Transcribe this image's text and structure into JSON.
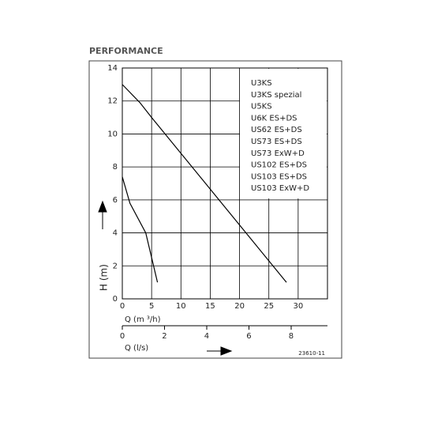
{
  "chart_data": {
    "type": "line",
    "title": "PERFORMANCE",
    "ylabel": "H (m)",
    "xlabel": "Q (m ³/h)",
    "x2label": "Q (l/s)",
    "xlim": [
      0,
      35
    ],
    "xticks": [
      0,
      5,
      10,
      15,
      20,
      25,
      30
    ],
    "ylim": [
      0,
      14
    ],
    "yticks": [
      0,
      2,
      4,
      6,
      8,
      10,
      12,
      14
    ],
    "x2lim": [
      0,
      9.72
    ],
    "x2ticks": [
      0,
      2,
      4,
      6,
      8
    ],
    "grid": true,
    "series": [
      {
        "color": "#000000",
        "x": [
          0,
          3,
          5,
          28
        ],
        "values": [
          13,
          11.9,
          11,
          1
        ]
      },
      {
        "color": "#000000",
        "x": [
          0,
          1.3,
          4,
          6
        ],
        "values": [
          7.4,
          5.8,
          4,
          1
        ]
      }
    ],
    "models": [
      "U3KS",
      "U3KS spezial",
      "U5KS",
      "U6K ES+DS",
      "US62 ES+DS",
      "US73 ES+DS",
      "US73 ExW+D",
      "US102 ES+DS",
      "US103 ES+DS",
      "US103 ExW+D"
    ],
    "code": "23610-11"
  }
}
